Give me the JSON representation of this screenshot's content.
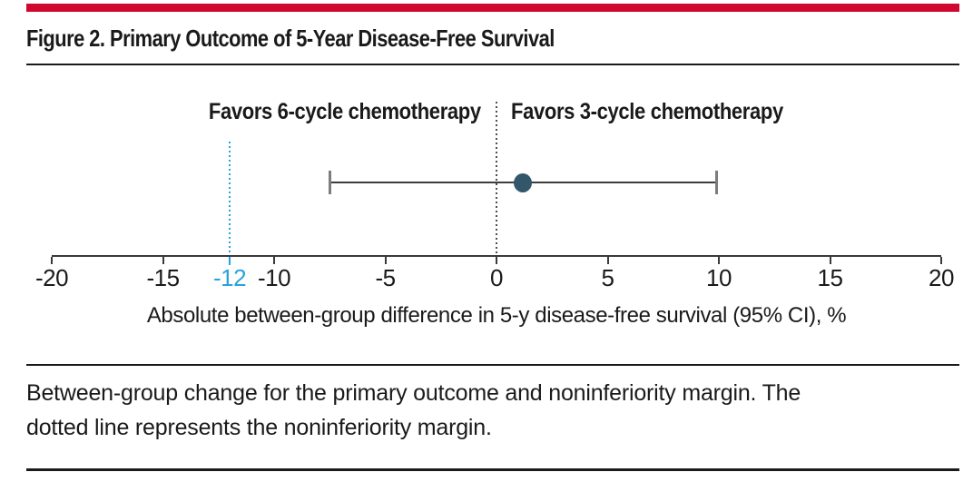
{
  "page": {
    "title": "Figure 2. Primary Outcome of 5-Year Disease-Free Survival",
    "caption": "Between-group change for the primary outcome and noninferiority margin. The\ndotted line represents the noninferiority margin."
  },
  "colors": {
    "masthead_red": "#D0082F",
    "noninferiority_blue": "#26A3DF",
    "point_fill": "#33576A",
    "axis_ink": "#3a3a3a",
    "ci_line": "#3d3d3d",
    "ci_cap_gray": "#7d7d7d",
    "reference_line_gray": "#4d4d4d",
    "text_ink": "#1a1a1a"
  },
  "chart_data": {
    "type": "scatter",
    "subtype": "forest-plot",
    "title": "",
    "xlabel": "Absolute between-group difference in 5-y disease-free survival (95% CI), %",
    "ylabel": "",
    "xlim": [
      -20,
      20
    ],
    "xticks": [
      -20,
      -15,
      -10,
      -5,
      0,
      5,
      10,
      15,
      20
    ],
    "grid": false,
    "region_labels": {
      "left": "Favors 6-cycle chemotherapy",
      "right": "Favors 3-cycle chemotherapy"
    },
    "reference_line_x": 0,
    "noninferiority_margin_x": -12,
    "series": [
      {
        "name": "Absolute between-group difference in 5-y disease-free survival",
        "point_estimate": 1.2,
        "ci_lower": -7.5,
        "ci_upper": 9.9
      }
    ]
  }
}
